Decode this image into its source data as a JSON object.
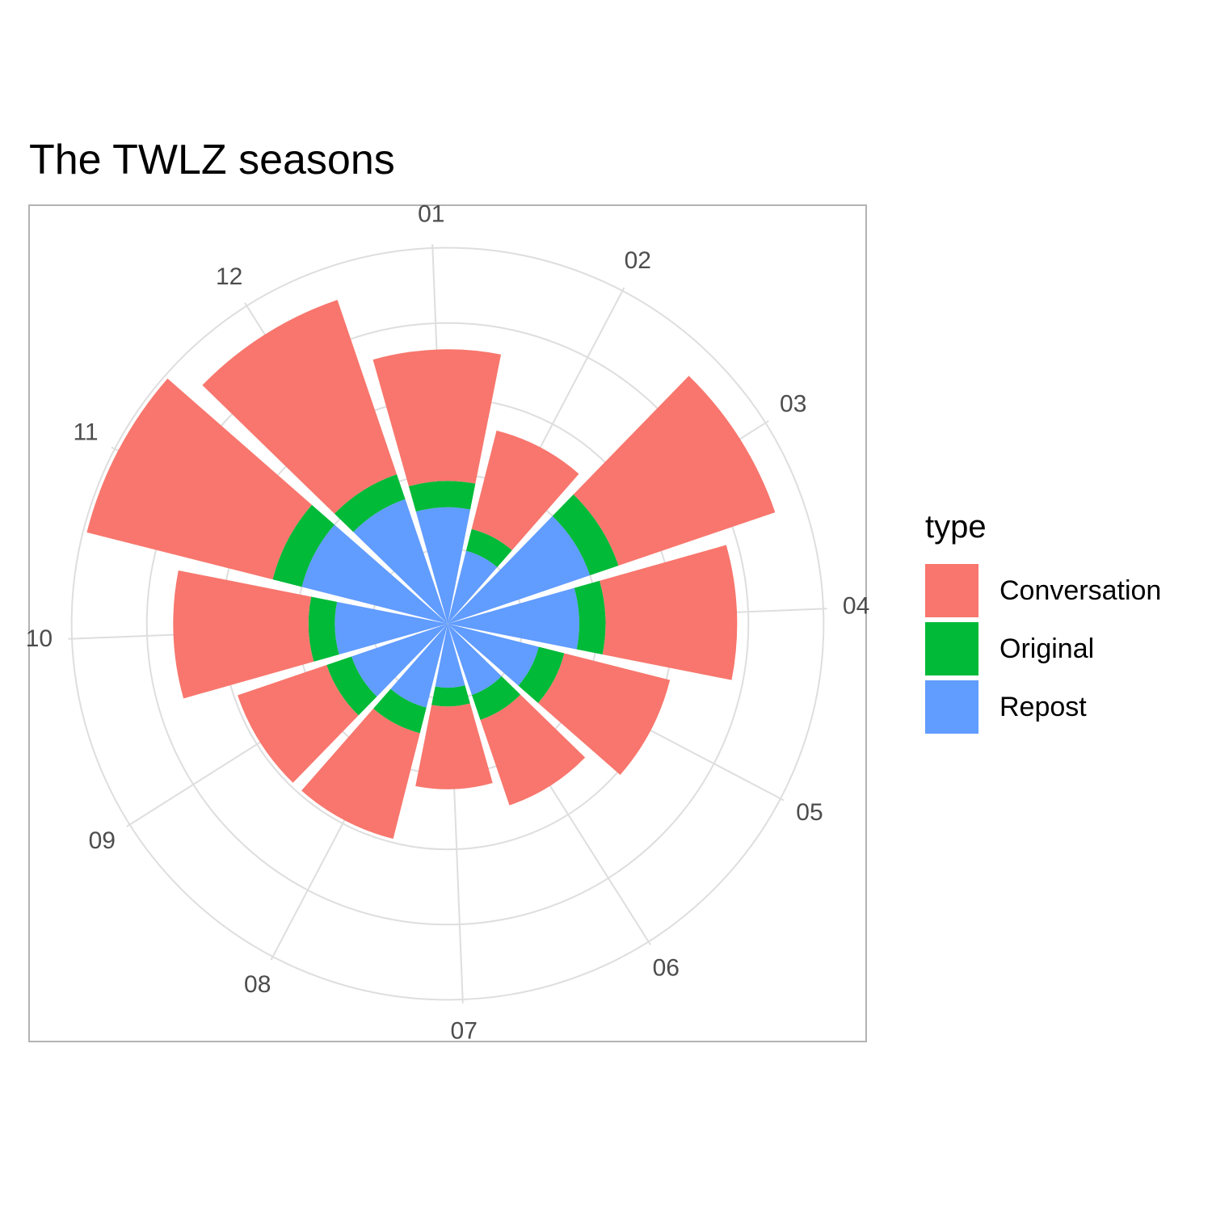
{
  "chart_data": {
    "type": "bar",
    "coord": "polar",
    "title": "The TWLZ seasons",
    "xlabel": "",
    "ylabel": "",
    "categories": [
      "01",
      "02",
      "03",
      "04",
      "05",
      "06",
      "07",
      "08",
      "09",
      "10",
      "11",
      "12"
    ],
    "stacked": true,
    "ylim": [
      0,
      5.05
    ],
    "series": [
      {
        "name": "Repost",
        "color": "#619CFF",
        "values": [
          1.55,
          1.0,
          2.0,
          1.75,
          1.25,
          1.0,
          0.85,
          1.15,
          1.35,
          1.5,
          2.0,
          1.75
        ]
      },
      {
        "name": "Original",
        "color": "#00BA38",
        "values": [
          0.35,
          0.3,
          0.4,
          0.35,
          0.35,
          0.35,
          0.25,
          0.35,
          0.35,
          0.35,
          0.4,
          0.35
        ]
      },
      {
        "name": "Conversation",
        "color": "#F8766D",
        "values": [
          1.75,
          1.35,
          2.2,
          1.75,
          1.45,
          1.2,
          1.1,
          1.45,
          1.25,
          1.8,
          2.55,
          2.45
        ]
      }
    ],
    "grid": true,
    "legend": {
      "title": "type",
      "position": "right"
    }
  },
  "legend": {
    "title": "type",
    "items": [
      {
        "label": "Conversation",
        "color": "#F8766D"
      },
      {
        "label": "Original",
        "color": "#00BA38"
      },
      {
        "label": "Repost",
        "color": "#619CFF"
      }
    ]
  }
}
